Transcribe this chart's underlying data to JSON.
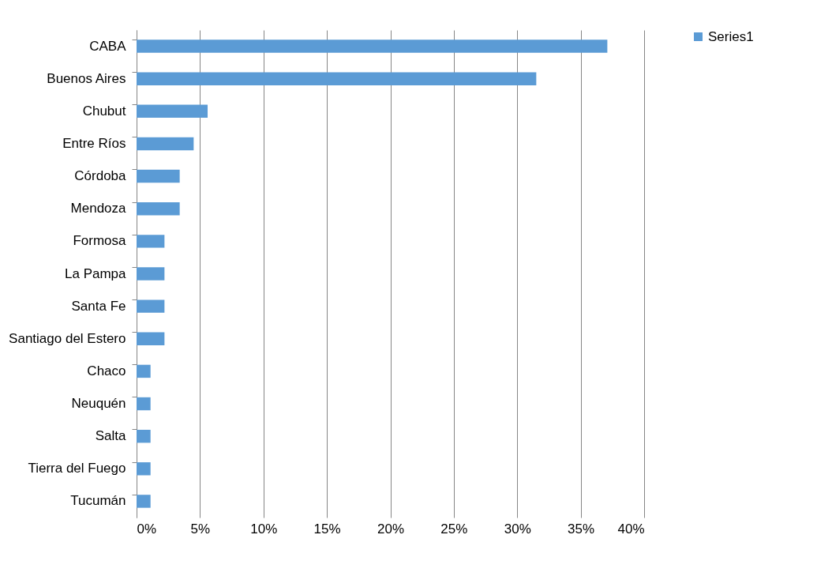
{
  "chart_data": {
    "type": "bar",
    "orientation": "horizontal",
    "categories": [
      "CABA",
      "Buenos Aires",
      "Chubut",
      "Entre Ríos",
      "Córdoba",
      "Mendoza",
      "Formosa",
      "La Pampa",
      "Santa Fe",
      "Santiago del Estero",
      "Chaco",
      "Neuquén",
      "Salta",
      "Tierra del Fuego",
      "Tucumán"
    ],
    "series": [
      {
        "name": "Series1",
        "color": "#5b9bd5",
        "values": [
          37.1,
          31.5,
          5.6,
          4.5,
          3.4,
          3.4,
          2.2,
          2.2,
          2.2,
          2.2,
          1.1,
          1.1,
          1.1,
          1.1,
          1.1
        ]
      }
    ],
    "xlim": [
      0,
      40
    ],
    "xticks": [
      {
        "value": 0,
        "label": "0%"
      },
      {
        "value": 5,
        "label": "5%"
      },
      {
        "value": 10,
        "label": "10%"
      },
      {
        "value": 15,
        "label": "15%"
      },
      {
        "value": 20,
        "label": "20%"
      },
      {
        "value": 25,
        "label": "25%"
      },
      {
        "value": 30,
        "label": "30%"
      },
      {
        "value": 35,
        "label": "35%"
      },
      {
        "value": 40,
        "label": "40%"
      }
    ],
    "grid": "x",
    "legend": "right"
  }
}
